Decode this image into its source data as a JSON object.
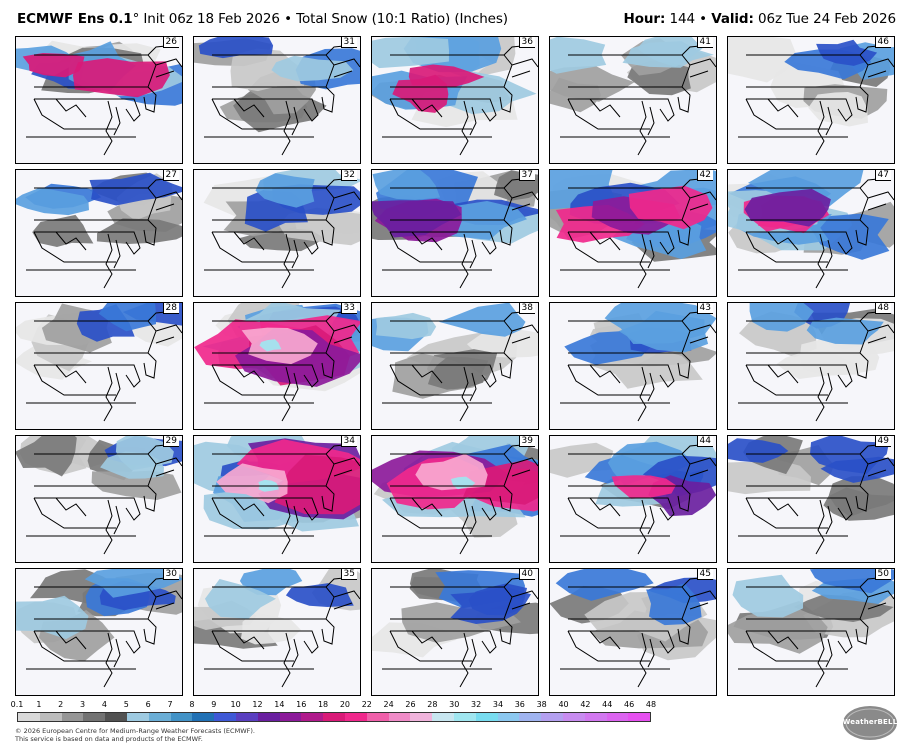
{
  "header": {
    "model": "ECMWF Ens 0.1",
    "degree": "°",
    "init": "Init 06z 18 Feb 2026",
    "separator": "•",
    "product": "Total Snow (10:1 Ratio) (Inches)",
    "hour_label": "Hour:",
    "hour_value": "144",
    "valid_label": "Valid:",
    "valid_value": "06z Tue 24 Feb 2026"
  },
  "panels": [
    {
      "member": "26",
      "row": 0,
      "col": 0,
      "intensity": 3
    },
    {
      "member": "31",
      "row": 0,
      "col": 1,
      "intensity": 1
    },
    {
      "member": "36",
      "row": 0,
      "col": 2,
      "intensity": 3
    },
    {
      "member": "41",
      "row": 0,
      "col": 3,
      "intensity": 1
    },
    {
      "member": "46",
      "row": 0,
      "col": 4,
      "intensity": 1
    },
    {
      "member": "27",
      "row": 1,
      "col": 0,
      "intensity": 1
    },
    {
      "member": "32",
      "row": 1,
      "col": 1,
      "intensity": 2
    },
    {
      "member": "37",
      "row": 1,
      "col": 2,
      "intensity": 3
    },
    {
      "member": "42",
      "row": 1,
      "col": 3,
      "intensity": 4
    },
    {
      "member": "47",
      "row": 1,
      "col": 4,
      "intensity": 4
    },
    {
      "member": "28",
      "row": 2,
      "col": 0,
      "intensity": 1
    },
    {
      "member": "33",
      "row": 2,
      "col": 1,
      "intensity": 5
    },
    {
      "member": "38",
      "row": 2,
      "col": 2,
      "intensity": 1
    },
    {
      "member": "43",
      "row": 2,
      "col": 3,
      "intensity": 2
    },
    {
      "member": "48",
      "row": 2,
      "col": 4,
      "intensity": 1
    },
    {
      "member": "29",
      "row": 3,
      "col": 0,
      "intensity": 1
    },
    {
      "member": "34",
      "row": 3,
      "col": 1,
      "intensity": 5
    },
    {
      "member": "39",
      "row": 3,
      "col": 2,
      "intensity": 5
    },
    {
      "member": "44",
      "row": 3,
      "col": 3,
      "intensity": 3
    },
    {
      "member": "49",
      "row": 3,
      "col": 4,
      "intensity": 1
    },
    {
      "member": "30",
      "row": 4,
      "col": 0,
      "intensity": 2
    },
    {
      "member": "35",
      "row": 4,
      "col": 1,
      "intensity": 1
    },
    {
      "member": "40",
      "row": 4,
      "col": 2,
      "intensity": 1
    },
    {
      "member": "45",
      "row": 4,
      "col": 3,
      "intensity": 1
    },
    {
      "member": "50",
      "row": 4,
      "col": 4,
      "intensity": 1
    }
  ],
  "legend": {
    "ticks": [
      "0.1",
      "1",
      "2",
      "3",
      "4",
      "5",
      "6",
      "7",
      "8",
      "9",
      "10",
      "12",
      "14",
      "16",
      "18",
      "20",
      "22",
      "24",
      "26",
      "28",
      "30",
      "32",
      "34",
      "36",
      "38",
      "40",
      "42",
      "44",
      "46",
      "48"
    ],
    "colors": [
      "#d9d9d9",
      "#bdbdbd",
      "#969696",
      "#737373",
      "#525252",
      "#9ecae1",
      "#6baed6",
      "#4292c6",
      "#2171b5",
      "#3f59d6",
      "#5a3fc0",
      "#6a1fa0",
      "#8c1a9a",
      "#b01a8c",
      "#d91a78",
      "#f0288c",
      "#f060aa",
      "#f08cc8",
      "#f0b4dc",
      "#c8e6f0",
      "#a0e6f0",
      "#78dcf0",
      "#8cc8f0",
      "#a0b4f0",
      "#b4a0f0",
      "#c88cf0",
      "#d278f0",
      "#dc64f0",
      "#e650f0"
    ]
  },
  "footer": {
    "line1": "© 2026 European Centre for Medium-Range Weather Forecasts (ECMWF).",
    "line2": "This service is based on data and products of the ECMWF."
  },
  "logo": {
    "text": "WeatherBELL"
  }
}
